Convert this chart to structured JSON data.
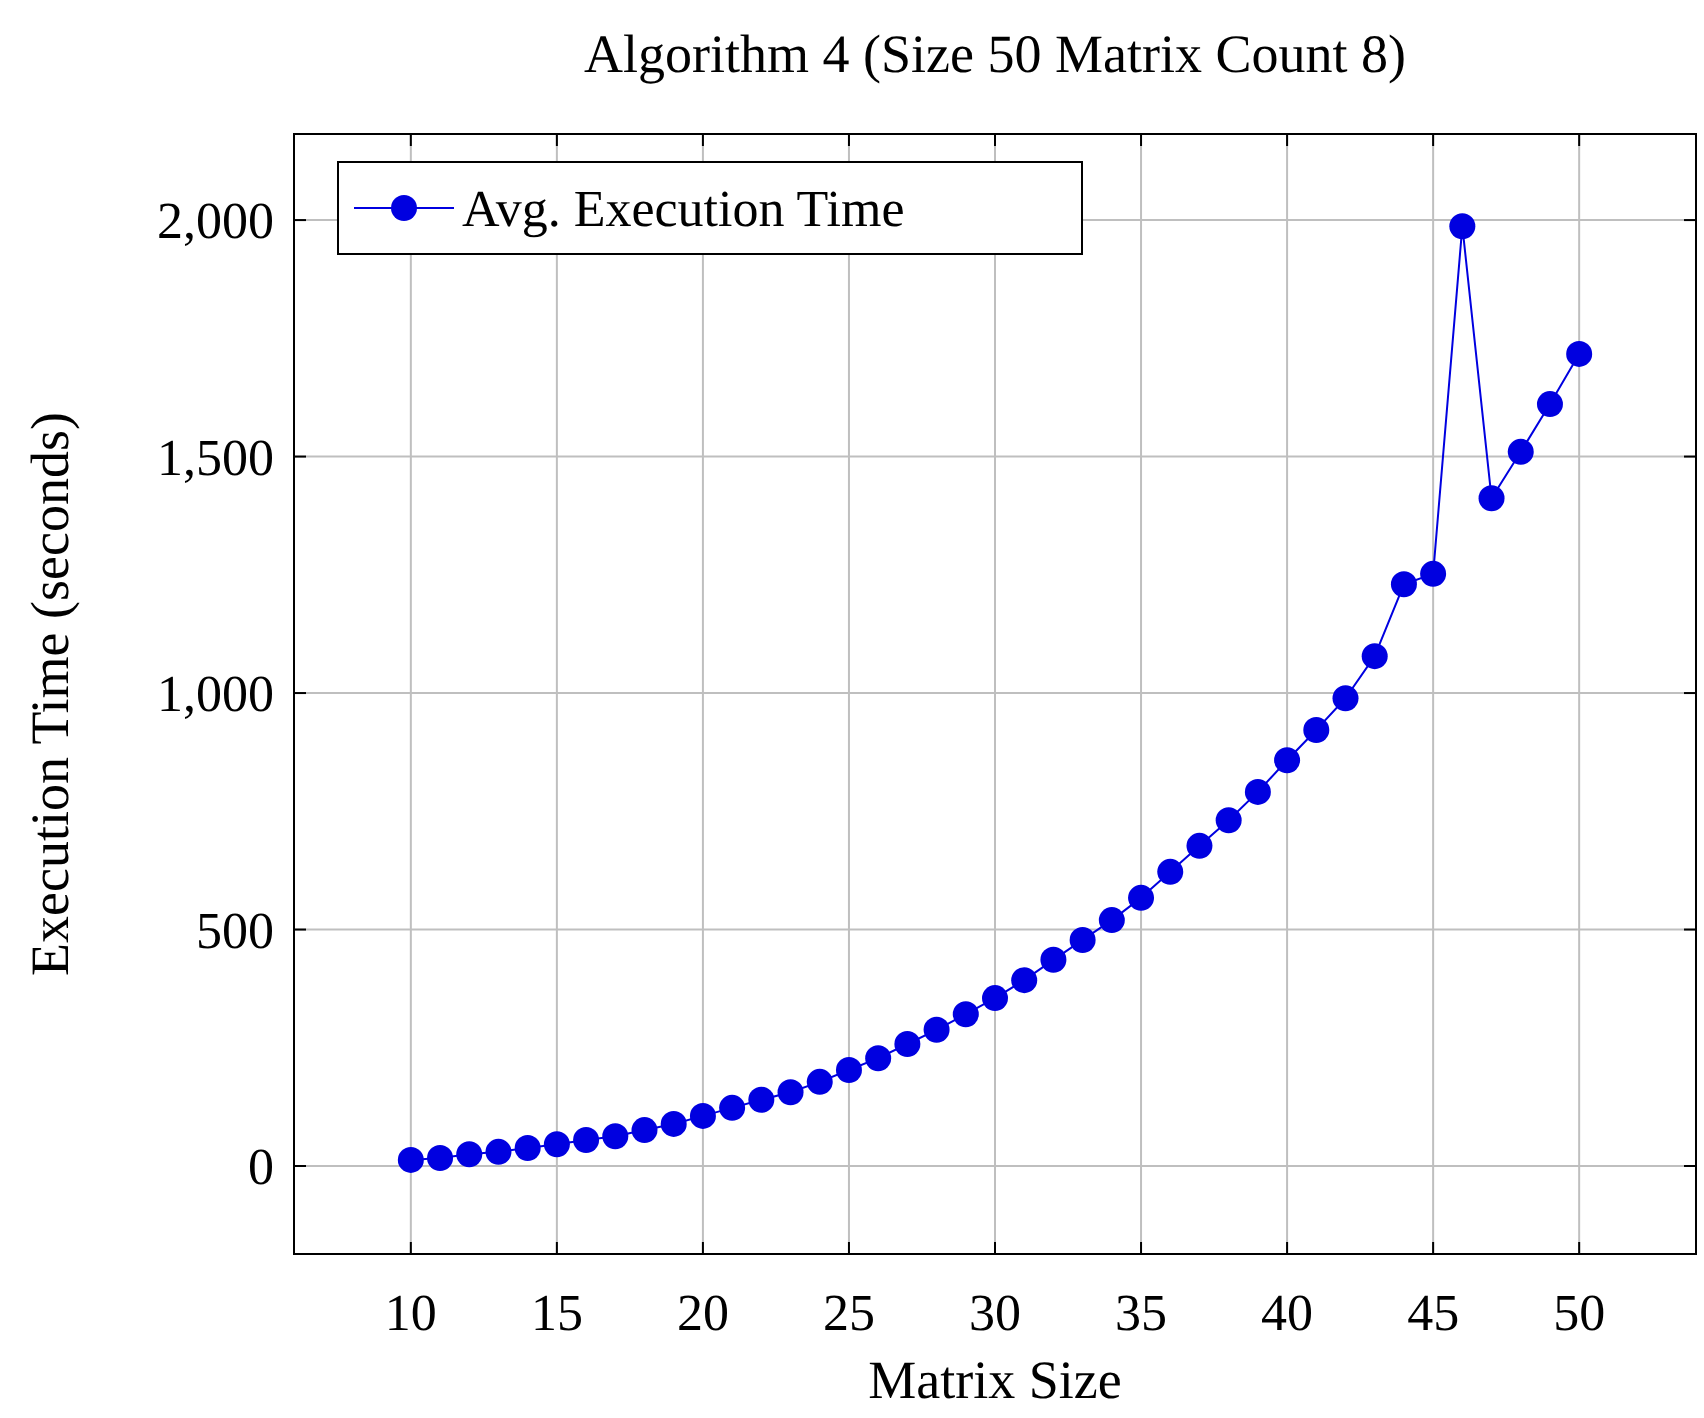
{
  "chart_data": {
    "type": "line",
    "title": "Algorithm 4 (Size 50 Matrix Count 8)",
    "xlabel": "Matrix Size",
    "ylabel": "Execution Time (seconds)",
    "x": [
      10,
      11,
      12,
      13,
      14,
      15,
      16,
      17,
      18,
      19,
      20,
      21,
      22,
      23,
      24,
      25,
      26,
      27,
      28,
      29,
      30,
      31,
      32,
      33,
      34,
      35,
      36,
      37,
      38,
      39,
      40,
      41,
      42,
      43,
      44,
      45,
      46,
      47,
      48,
      49,
      50
    ],
    "series": [
      {
        "name": "Avg. Execution Time",
        "color": "#0000e0",
        "values": [
          13,
          17,
          25,
          30,
          38,
          46,
          55,
          63,
          76,
          89,
          106,
          123,
          140,
          156,
          178,
          203,
          228,
          258,
          288,
          321,
          355,
          393,
          436,
          478,
          520,
          567,
          622,
          677,
          731,
          791,
          858,
          922,
          989,
          1078,
          1230,
          1252,
          1987,
          1412,
          1510,
          1611,
          1717
        ]
      }
    ],
    "xlim": [
      6,
      54
    ],
    "xticks": [
      10,
      15,
      20,
      25,
      30,
      35,
      40,
      45,
      50
    ],
    "ylim": [
      -186,
      2182
    ],
    "yticks": [
      0,
      {
        "value": 500,
        "label": "500"
      },
      {
        "value": 1000,
        "label": "1,000"
      },
      {
        "value": 1500,
        "label": "1,500"
      },
      {
        "value": 2000,
        "label": "2,000"
      }
    ],
    "grid": true,
    "legend": "top left",
    "marker": "circle",
    "line_style": "solid"
  }
}
